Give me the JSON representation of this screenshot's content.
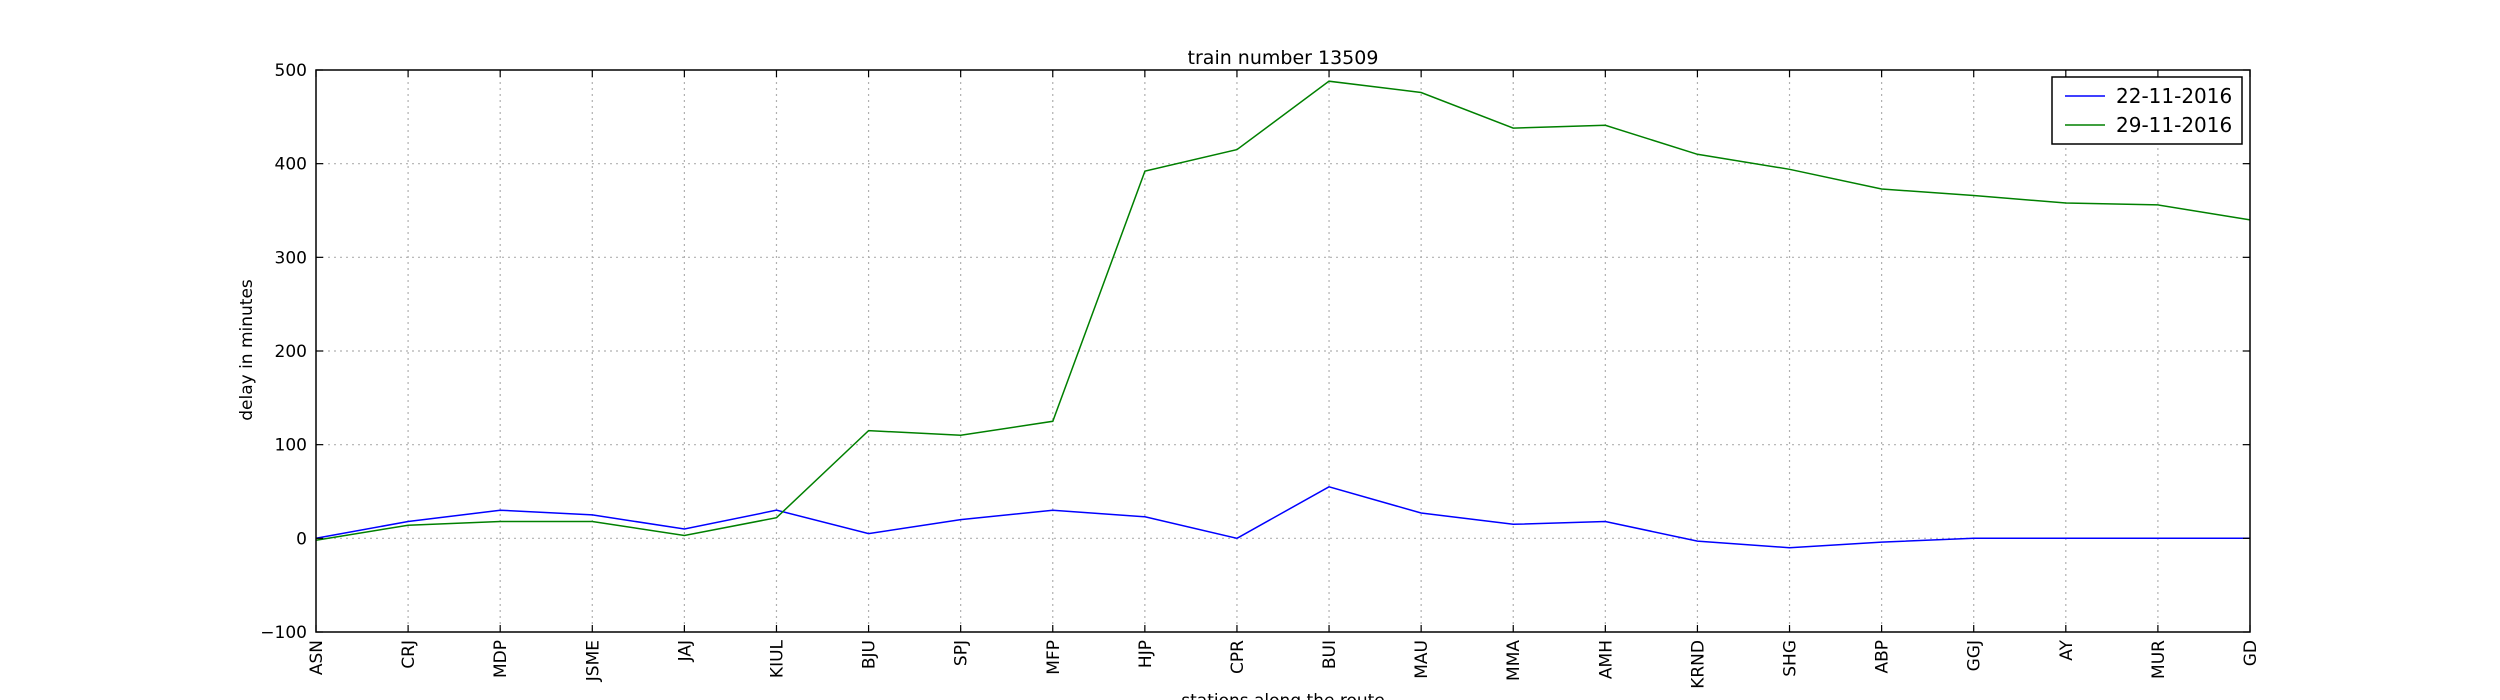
{
  "chart_data": {
    "type": "line",
    "title": "train number 13509",
    "xlabel": "stations along the route",
    "ylabel": "delay in minutes",
    "categories": [
      "ASN",
      "CRJ",
      "MDP",
      "JSME",
      "JAJ",
      "KIUL",
      "BJU",
      "SPJ",
      "MFP",
      "HJP",
      "CPR",
      "BUI",
      "MAU",
      "MMA",
      "AMH",
      "KRND",
      "SHG",
      "ABP",
      "GGJ",
      "AY",
      "MUR",
      "GD"
    ],
    "ylim": [
      -100,
      500
    ],
    "yticks": [
      -100,
      0,
      100,
      200,
      300,
      400,
      500
    ],
    "grid": true,
    "legend_position": "top-right",
    "series": [
      {
        "name": "22-11-2016",
        "color": "#0000ff",
        "values": [
          0,
          18,
          30,
          25,
          10,
          30,
          5,
          20,
          30,
          23,
          0,
          55,
          27,
          15,
          18,
          -3,
          -10,
          -4,
          0,
          0,
          0,
          0
        ]
      },
      {
        "name": "29-11-2016",
        "color": "#008000",
        "values": [
          -2,
          14,
          18,
          18,
          3,
          22,
          115,
          110,
          125,
          392,
          415,
          488,
          476,
          438,
          441,
          410,
          394,
          373,
          366,
          358,
          356,
          340
        ]
      }
    ]
  }
}
